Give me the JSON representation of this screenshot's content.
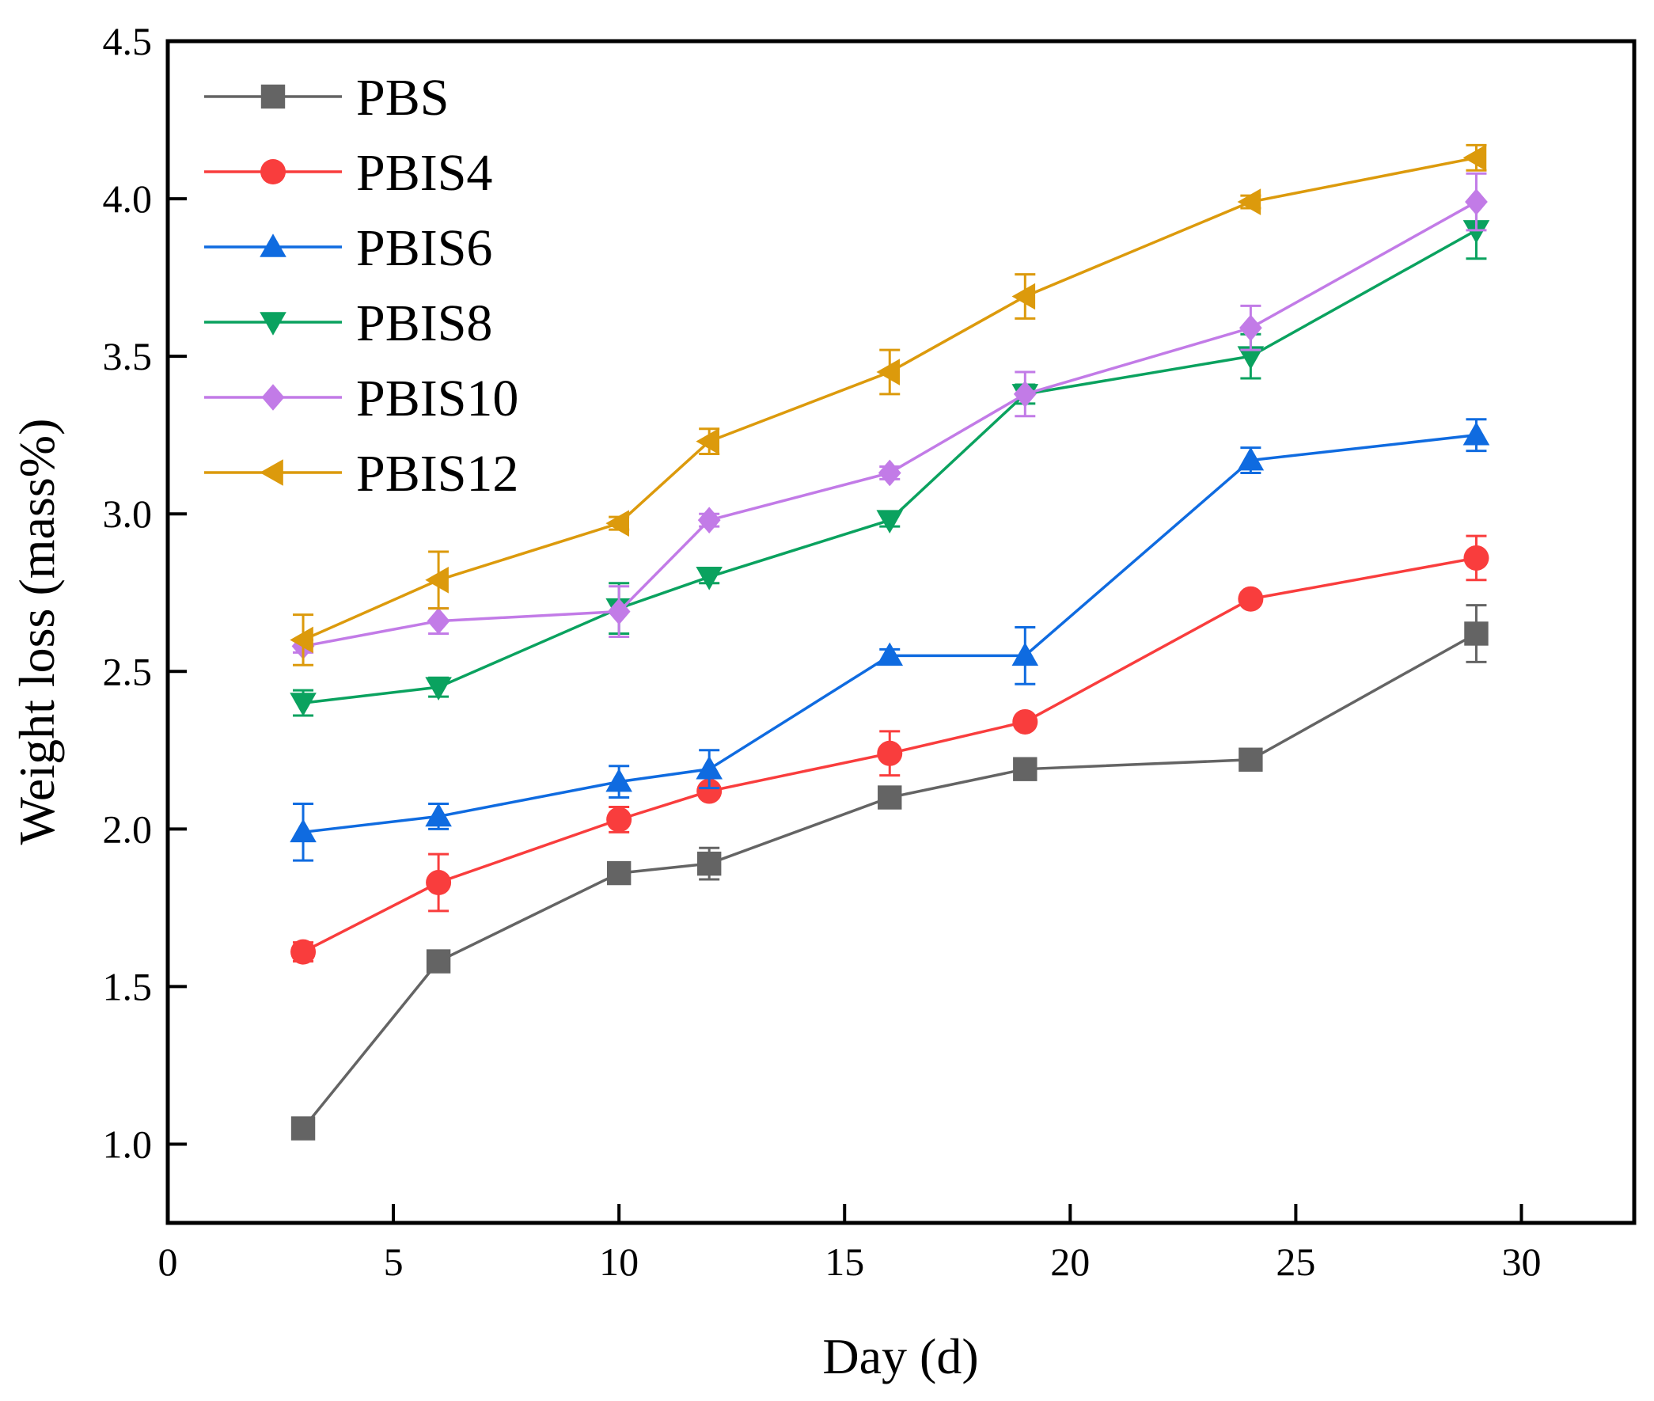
{
  "chart_data": {
    "type": "line",
    "title": "",
    "xlabel": "Day (d)",
    "ylabel": "Weight loss (mass%)",
    "xlim": [
      0,
      32.5
    ],
    "ylim": [
      0.75,
      4.5
    ],
    "xticks": [
      0,
      5,
      10,
      15,
      20,
      25,
      30
    ],
    "xtick_labels": [
      "0",
      "5",
      "10",
      "15",
      "20",
      "25",
      "30"
    ],
    "yticks": [
      1.0,
      1.5,
      2.0,
      2.5,
      3.0,
      3.5,
      4.0,
      4.5
    ],
    "ytick_labels": [
      "1.0",
      "1.5",
      "2.0",
      "2.5",
      "3.0",
      "3.5",
      "4.0",
      "4.5"
    ],
    "legend_position": "top-left",
    "x": [
      3,
      6,
      10,
      12,
      16,
      19,
      24,
      29
    ],
    "series": [
      {
        "name": "PBS",
        "color": "#646464",
        "marker": "square",
        "values": [
          1.05,
          1.58,
          1.86,
          1.89,
          2.1,
          2.19,
          2.22,
          2.62
        ],
        "errors": [
          0.02,
          0.02,
          0.02,
          0.05,
          0.02,
          0.02,
          0.02,
          0.09
        ]
      },
      {
        "name": "PBIS4",
        "color": "#f93d3d",
        "marker": "circle",
        "values": [
          1.61,
          1.83,
          2.03,
          2.12,
          2.24,
          2.34,
          2.73,
          2.86
        ],
        "errors": [
          0.03,
          0.09,
          0.04,
          0.02,
          0.07,
          0.02,
          0.02,
          0.07
        ]
      },
      {
        "name": "PBIS6",
        "color": "#0f6be0",
        "marker": "triangle-up",
        "values": [
          1.99,
          2.04,
          2.15,
          2.19,
          2.55,
          2.55,
          3.17,
          3.25
        ],
        "errors": [
          0.09,
          0.04,
          0.05,
          0.06,
          0.02,
          0.09,
          0.04,
          0.05
        ]
      },
      {
        "name": "PBIS8",
        "color": "#0aa25f",
        "marker": "triangle-down",
        "values": [
          2.4,
          2.45,
          2.7,
          2.8,
          2.98,
          3.38,
          3.5,
          3.9
        ],
        "errors": [
          0.04,
          0.03,
          0.08,
          0.02,
          0.02,
          0.03,
          0.07,
          0.09
        ]
      },
      {
        "name": "PBIS10",
        "color": "#c27be7",
        "marker": "diamond",
        "values": [
          2.58,
          2.66,
          2.69,
          2.98,
          3.13,
          3.38,
          3.59,
          3.99
        ],
        "errors": [
          0.02,
          0.04,
          0.08,
          0.02,
          0.02,
          0.07,
          0.07,
          0.09
        ]
      },
      {
        "name": "PBIS12",
        "color": "#dc9a0c",
        "marker": "triangle-left",
        "values": [
          2.6,
          2.79,
          2.97,
          3.23,
          3.45,
          3.69,
          3.99,
          4.13
        ],
        "errors": [
          0.08,
          0.09,
          0.02,
          0.04,
          0.07,
          0.07,
          0.02,
          0.04
        ]
      }
    ]
  }
}
